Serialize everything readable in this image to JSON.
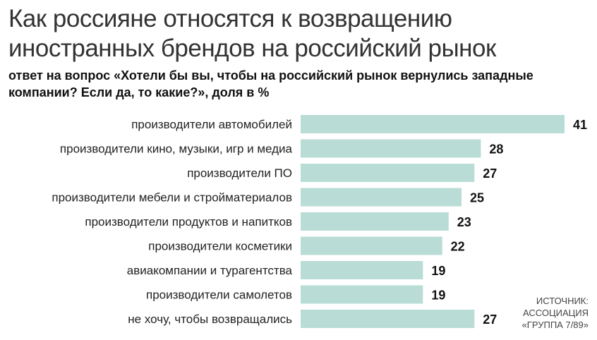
{
  "title": "Как россияне относятся к возвращению иностранных брендов на российский рынок",
  "subtitle": "ответ на вопрос «Хотели бы вы, чтобы на российский рынок вернулись западные компании? Если да, то какие?», доля в %",
  "source": {
    "line1": "ИСТОЧНИК:",
    "line2": "АССОЦИАЦИЯ",
    "line3": "«ГРУППА 7/89»"
  },
  "colors": {
    "bar": "#b9ddd6"
  },
  "chart_data": {
    "type": "bar",
    "orientation": "horizontal",
    "categories": [
      "производители автомобилей",
      "производители кино, музыки, игр и медиа",
      "производители ПО",
      "производители мебели и стройматериалов",
      "производители продуктов и напитков",
      "производители косметики",
      "авиакомпании и турагентства",
      "производители самолетов",
      "не хочу, чтобы возвращались"
    ],
    "values": [
      41,
      28,
      27,
      25,
      23,
      22,
      19,
      19,
      27
    ],
    "value_labels": [
      "41",
      "28",
      "27",
      "25",
      "23",
      "22",
      "19",
      "19",
      "27"
    ],
    "xlim": [
      0,
      41
    ],
    "grid": false,
    "legend": "none"
  }
}
